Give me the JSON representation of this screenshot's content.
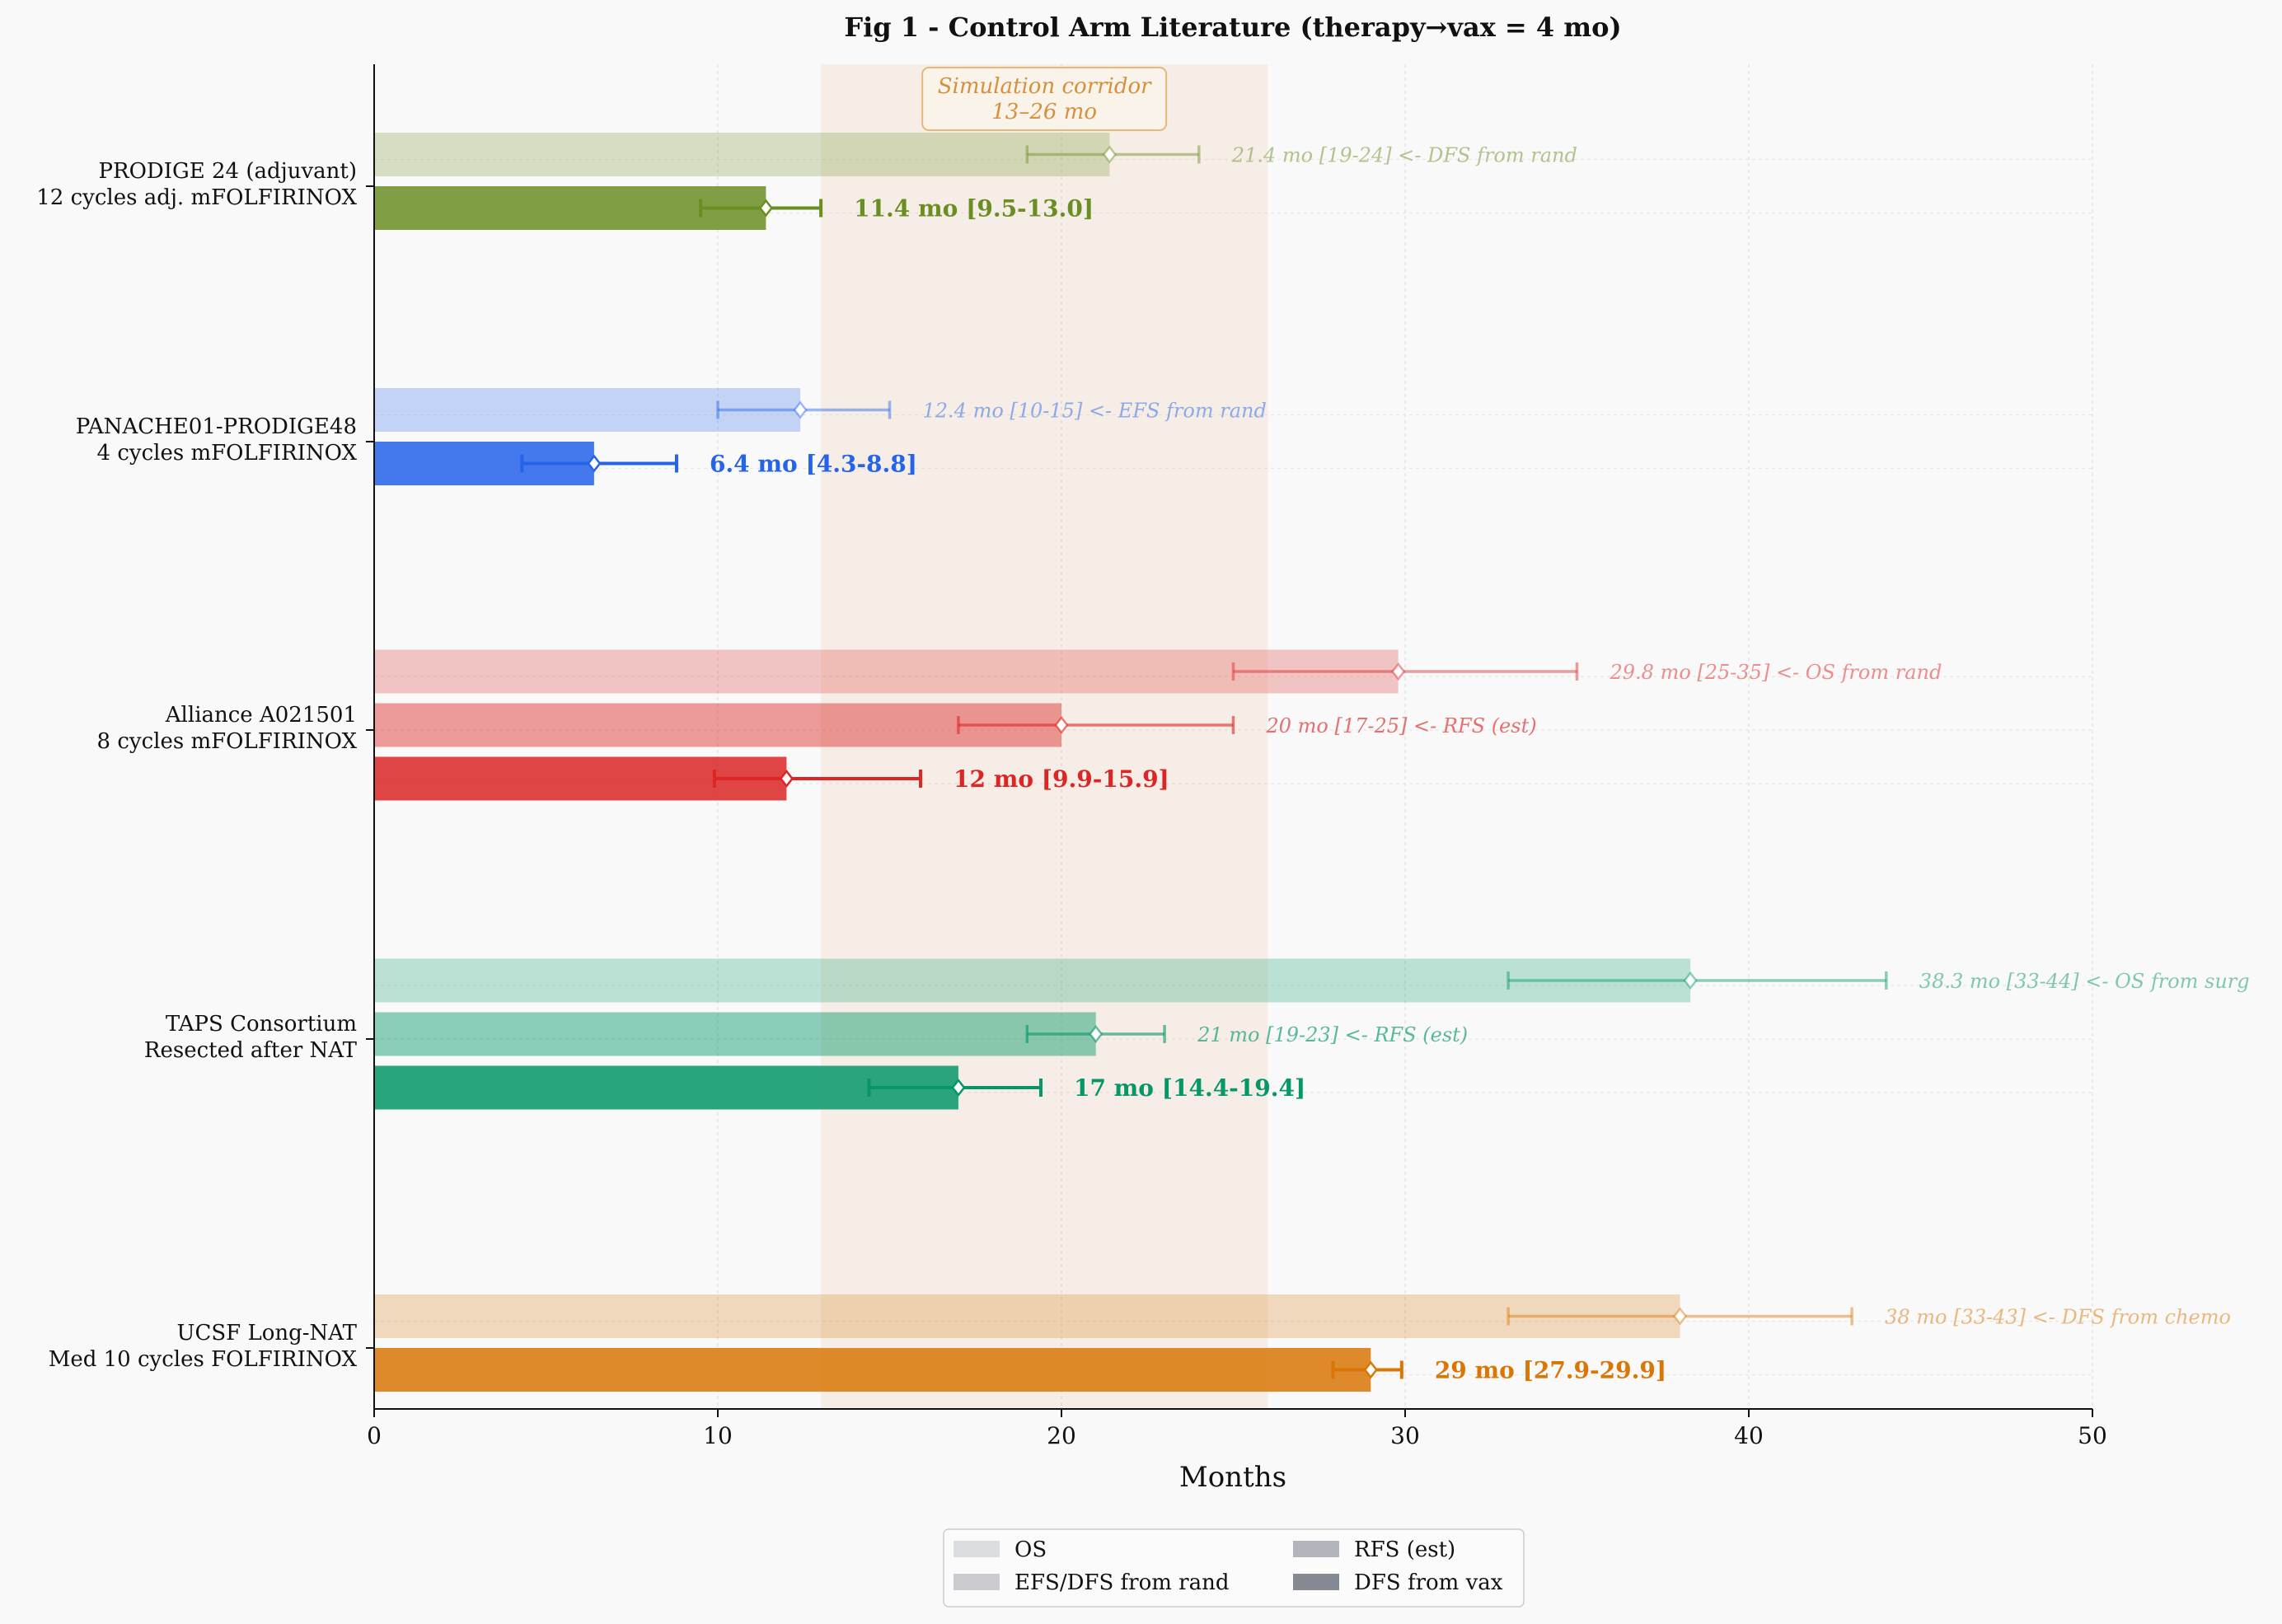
{
  "chart_data": {
    "type": "bar",
    "orientation": "horizontal",
    "title": "Fig 1 - Control Arm Literature (therapy→vax = 4 mo)",
    "xlabel": "Months",
    "ylabel": "",
    "xlim": [
      0,
      50
    ],
    "xticks": [
      0,
      10,
      20,
      30,
      40,
      50
    ],
    "grid": true,
    "legend_position": "bottom-center",
    "corridor": {
      "label_line1": "Simulation corridor",
      "label_line2": "13–26 mo",
      "start": 13,
      "end": 26,
      "color": "#d9822b"
    },
    "legend": [
      {
        "label": "OS",
        "color": "#dcdde0"
      },
      {
        "label": "EFS/DFS from rand",
        "color": "#caccd0"
      },
      {
        "label": "RFS (est)",
        "color": "#b2b5bb"
      },
      {
        "label": "DFS from vax",
        "color": "#858a92"
      }
    ],
    "groups": [
      {
        "name_line1": "PRODIGE 24 (adjuvant)",
        "name_line2": "12 cycles adj. mFOLFIRINOX",
        "color": "#6b8e23",
        "bars": [
          {
            "metric": "EFS/DFS from rand",
            "value": 21.4,
            "low": 19,
            "high": 24,
            "label": "21.4 mo [19-24] <- DFS from rand",
            "primary": false
          },
          {
            "metric": "DFS from vax",
            "value": 11.4,
            "low": 9.5,
            "high": 13.0,
            "label": "11.4 mo [9.5-13.0]",
            "primary": true
          }
        ]
      },
      {
        "name_line1": "PANACHE01-PRODIGE48",
        "name_line2": "4 cycles mFOLFIRINOX",
        "color": "#2563eb",
        "bars": [
          {
            "metric": "EFS/DFS from rand",
            "value": 12.4,
            "low": 10,
            "high": 15,
            "label": "12.4 mo [10-15] <- EFS from rand",
            "primary": false
          },
          {
            "metric": "DFS from vax",
            "value": 6.4,
            "low": 4.3,
            "high": 8.8,
            "label": "6.4 mo [4.3-8.8]",
            "primary": true
          }
        ]
      },
      {
        "name_line1": "Alliance A021501",
        "name_line2": "8 cycles mFOLFIRINOX",
        "color": "#dc2626",
        "bars": [
          {
            "metric": "OS",
            "value": 29.8,
            "low": 25,
            "high": 35,
            "label": "29.8 mo [25-35] <- OS from rand",
            "primary": false
          },
          {
            "metric": "RFS (est)",
            "value": 20,
            "low": 17,
            "high": 25,
            "label": "20 mo [17-25] <- RFS (est)",
            "primary": false
          },
          {
            "metric": "DFS from vax",
            "value": 12,
            "low": 9.9,
            "high": 15.9,
            "label": "12 mo [9.9-15.9]",
            "primary": true
          }
        ]
      },
      {
        "name_line1": "TAPS Consortium",
        "name_line2": "Resected after NAT",
        "color": "#059669",
        "bars": [
          {
            "metric": "OS",
            "value": 38.3,
            "low": 33,
            "high": 44,
            "label": "38.3 mo [33-44] <- OS from surg",
            "primary": false
          },
          {
            "metric": "RFS (est)",
            "value": 21,
            "low": 19,
            "high": 23,
            "label": "21 mo [19-23] <- RFS (est)",
            "primary": false
          },
          {
            "metric": "DFS from vax",
            "value": 17,
            "low": 14.4,
            "high": 19.4,
            "label": "17 mo [14.4-19.4]",
            "primary": true
          }
        ]
      },
      {
        "name_line1": "UCSF Long-NAT",
        "name_line2": "Med 10 cycles FOLFIRINOX",
        "color": "#d97706",
        "bars": [
          {
            "metric": "EFS/DFS from rand",
            "value": 38,
            "low": 33,
            "high": 43,
            "label": "38 mo [33-43] <- DFS from chemo",
            "primary": false
          },
          {
            "metric": "DFS from vax",
            "value": 29,
            "low": 27.9,
            "high": 29.9,
            "label": "29 mo [27.9-29.9]",
            "primary": true
          }
        ]
      }
    ]
  }
}
